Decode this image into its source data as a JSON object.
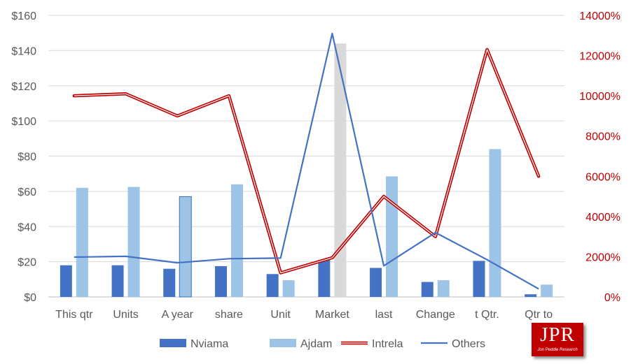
{
  "chart_data": {
    "type": "bar",
    "categories": [
      "This qtr",
      "Units",
      "A year",
      "share",
      "Unit",
      "Market",
      "last",
      "Change",
      "t Qtr.",
      "Qtr to"
    ],
    "left_axis": {
      "ylim": [
        0,
        160
      ],
      "ticks": [
        "$0",
        "$20",
        "$40",
        "$60",
        "$80",
        "$100",
        "$120",
        "$140",
        "$160"
      ]
    },
    "right_axis": {
      "ylim": [
        0,
        14000
      ],
      "ticks": [
        "0%",
        "2000%",
        "4000%",
        "6000%",
        "8000%",
        "10000%",
        "12000%",
        "14000%"
      ]
    },
    "series": [
      {
        "name": "Nviama",
        "kind": "bar",
        "axis": "left",
        "color": "#4472c4",
        "values": [
          18,
          18,
          16,
          17.5,
          13,
          21,
          16.5,
          8.5,
          20.5,
          1.5
        ]
      },
      {
        "name": "Ajdam",
        "kind": "bar",
        "axis": "left",
        "color": "#9dc3e6",
        "values": [
          62,
          62.5,
          57,
          64,
          9.5,
          144,
          68.5,
          9.5,
          84,
          7
        ],
        "highlight_colors": {
          "5": "#d9d9d9"
        }
      },
      {
        "name": "Intrela",
        "kind": "line",
        "axis": "right",
        "color": "#c00000",
        "values": [
          10000,
          10100,
          9000,
          10000,
          1200,
          1950,
          5000,
          3000,
          12300,
          6000
        ]
      },
      {
        "name": "Others",
        "kind": "line",
        "axis": "right",
        "color": "#4472c4",
        "values": [
          1980,
          2020,
          1700,
          1900,
          1930,
          13100,
          1550,
          3200,
          1850,
          400
        ]
      }
    ],
    "grid": "horizontal",
    "legend": "bottom"
  },
  "logo": {
    "main": "JPR",
    "sub": "Jon Peddie Research"
  }
}
